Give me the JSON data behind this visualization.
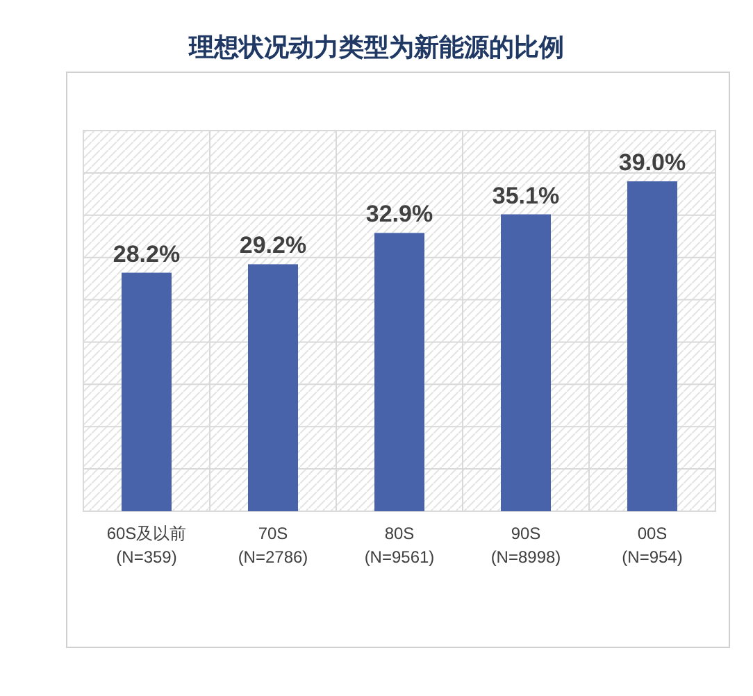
{
  "chart_data": {
    "type": "bar",
    "title": "理想状况动力类型为新能源的比例",
    "categories": [
      "60S及以前\n(N=359)",
      "70S\n(N=2786)",
      "80S\n(N=9561)",
      "90S\n(N=8998)",
      "00S\n(N=954)"
    ],
    "values": [
      28.2,
      29.2,
      32.9,
      35.1,
      39.0
    ],
    "value_labels": [
      "28.2%",
      "29.2%",
      "32.9%",
      "35.1%",
      "39.0%"
    ],
    "color": "#4863aa",
    "ylim": [
      0,
      45
    ],
    "yticks": [
      {
        "value": 0,
        "label": null
      },
      {
        "value": 5,
        "label": null
      },
      {
        "value": 10,
        "label": null
      },
      {
        "value": 15,
        "label": null
      },
      {
        "value": 20,
        "label": null
      },
      {
        "value": 25,
        "label": null
      },
      {
        "value": 30,
        "label": null
      },
      {
        "value": 35,
        "label": null
      },
      {
        "value": 40,
        "label": null
      },
      {
        "value": 45,
        "label": null
      }
    ],
    "grid": true
  }
}
